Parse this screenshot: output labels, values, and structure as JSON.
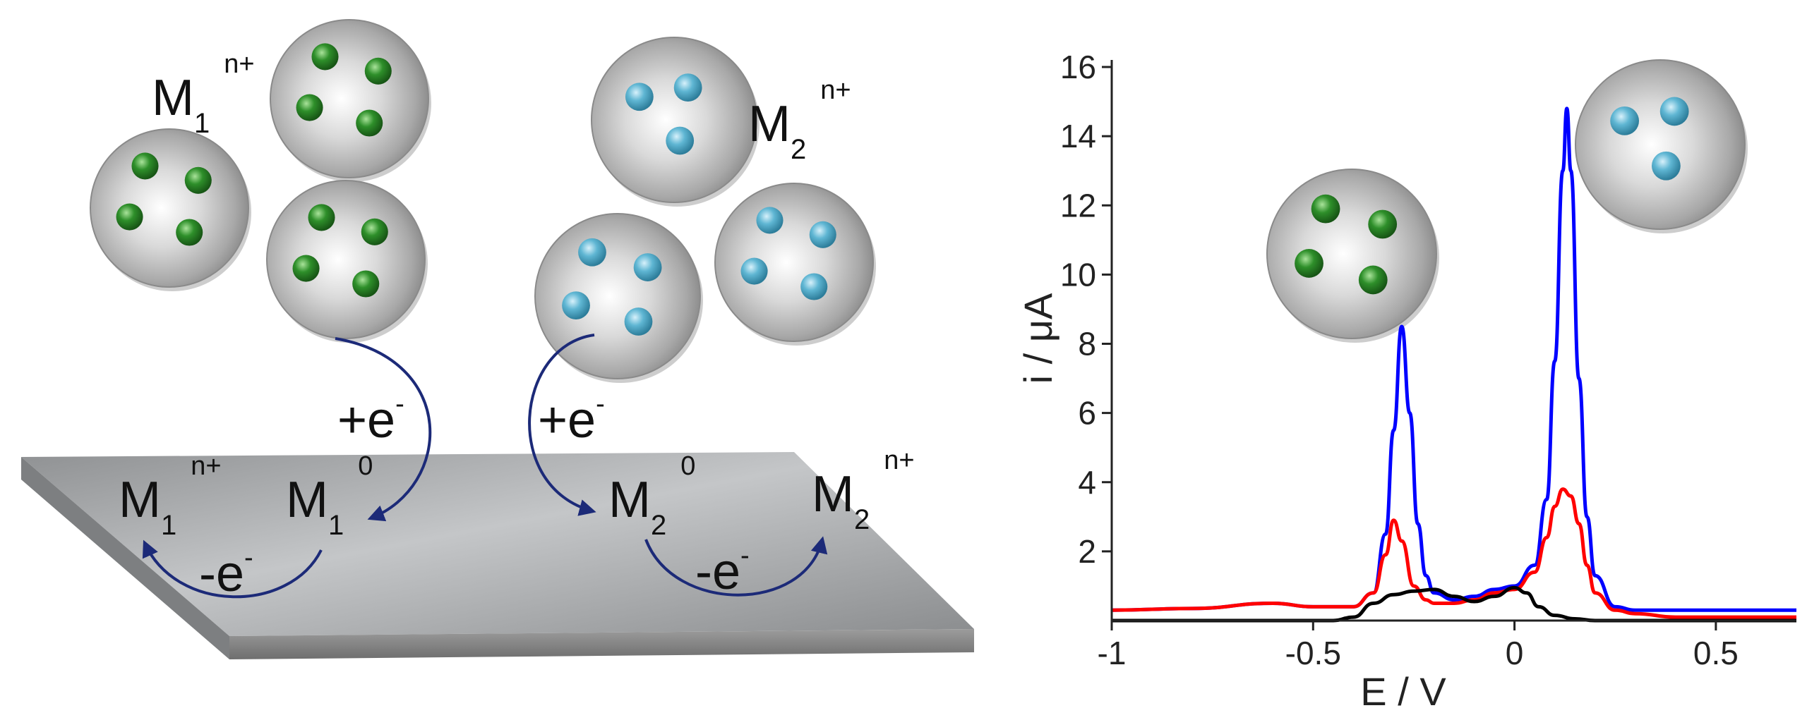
{
  "schematic": {
    "species": [
      {
        "base": "M",
        "sub": "1",
        "sup": "n+"
      },
      {
        "base": "M",
        "sub": "2",
        "sup": "n+"
      },
      {
        "base": "M",
        "sub": "1",
        "sup": "n+"
      },
      {
        "base": "M",
        "sub": "1",
        "sup": "0"
      },
      {
        "base": "M",
        "sub": "2",
        "sup": "0"
      },
      {
        "base": "M",
        "sub": "2",
        "sup": "n+"
      }
    ],
    "transfer": [
      {
        "base": "+e",
        "sup": "-"
      },
      {
        "base": "+e",
        "sup": "-"
      },
      {
        "base": "-e",
        "sup": "-"
      },
      {
        "base": "-e",
        "sup": "-"
      }
    ],
    "colors": {
      "particle_shell": "#b8b8b8",
      "m1_core": "#2e8f2a",
      "m2_core": "#5fb6d3",
      "electrode": "#9a9c9e",
      "arrow": "#1c2a78"
    }
  },
  "chart_data": {
    "type": "line",
    "xlabel": "E / V",
    "ylabel": "i / μA",
    "xlim": [
      -1.0,
      0.7
    ],
    "ylim": [
      0,
      16
    ],
    "x_ticks": [
      "-1",
      "-0.5",
      "0",
      "0.5"
    ],
    "y_ticks": [
      "2",
      "4",
      "6",
      "8",
      "10",
      "12",
      "14",
      "16"
    ],
    "series": [
      {
        "color": "#0000ff",
        "x": [
          -1.0,
          -0.8,
          -0.6,
          -0.5,
          -0.4,
          -0.35,
          -0.32,
          -0.3,
          -0.28,
          -0.26,
          -0.24,
          -0.22,
          -0.2,
          -0.15,
          -0.1,
          -0.05,
          0.0,
          0.05,
          0.08,
          0.1,
          0.12,
          0.13,
          0.14,
          0.16,
          0.18,
          0.2,
          0.25,
          0.3,
          0.4,
          0.5,
          0.6,
          0.7
        ],
        "y": [
          0.3,
          0.35,
          0.5,
          0.4,
          0.4,
          0.8,
          2.5,
          5.5,
          8.5,
          6.0,
          2.8,
          1.3,
          0.8,
          0.6,
          0.7,
          0.9,
          1.0,
          1.6,
          3.5,
          7.5,
          13.0,
          14.8,
          13.0,
          7.0,
          3.0,
          1.3,
          0.4,
          0.3,
          0.3,
          0.3,
          0.3,
          0.3
        ]
      },
      {
        "color": "#ff0000",
        "x": [
          -1.0,
          -0.8,
          -0.6,
          -0.5,
          -0.4,
          -0.35,
          -0.32,
          -0.3,
          -0.28,
          -0.25,
          -0.22,
          -0.2,
          -0.15,
          -0.1,
          -0.05,
          0.0,
          0.05,
          0.08,
          0.1,
          0.12,
          0.14,
          0.16,
          0.18,
          0.2,
          0.25,
          0.3,
          0.4,
          0.7
        ],
        "y": [
          0.3,
          0.35,
          0.5,
          0.4,
          0.4,
          0.8,
          1.9,
          2.9,
          2.3,
          1.0,
          0.6,
          0.5,
          0.5,
          0.6,
          0.8,
          0.9,
          1.4,
          2.4,
          3.3,
          3.8,
          3.6,
          2.8,
          1.6,
          0.8,
          0.3,
          0.2,
          0.1,
          0.1
        ]
      },
      {
        "color": "#000000",
        "x": [
          -1.0,
          -0.6,
          -0.45,
          -0.4,
          -0.35,
          -0.3,
          -0.25,
          -0.2,
          -0.15,
          -0.1,
          -0.05,
          0.0,
          0.03,
          0.06,
          0.1,
          0.15,
          0.2,
          0.3,
          0.5,
          0.7
        ],
        "y": [
          0.0,
          0.0,
          0.0,
          0.1,
          0.5,
          0.75,
          0.85,
          0.9,
          0.7,
          0.55,
          0.7,
          0.95,
          0.8,
          0.4,
          0.15,
          0.05,
          0.0,
          0.0,
          0.0,
          0.0
        ]
      }
    ]
  }
}
